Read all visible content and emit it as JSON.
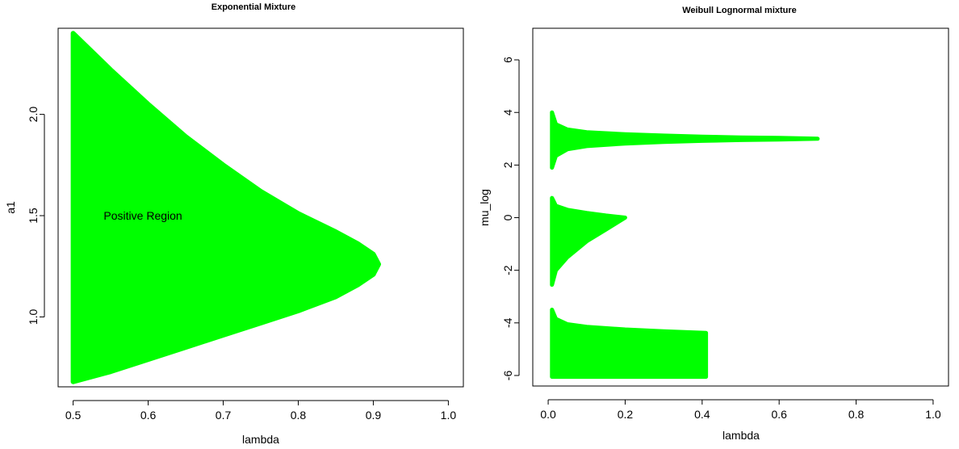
{
  "chart_data": [
    {
      "type": "scatter",
      "title": "Exponential Mixture",
      "xlabel": "lambda",
      "ylabel": "a1",
      "xlim": [
        0.48,
        1.02
      ],
      "ylim": [
        0.655,
        2.425
      ],
      "xticks": [
        0.5,
        0.6,
        0.7,
        0.8,
        0.9,
        1.0
      ],
      "xtick_labels": [
        "0.5",
        "0.6",
        "0.7",
        "0.8",
        "0.9",
        "1.0"
      ],
      "yticks": [
        1.0,
        1.5,
        2.0
      ],
      "ytick_labels": [
        "1.0",
        "1.5",
        "2.0"
      ],
      "color": "#00ff00",
      "annotation": {
        "text": "Positive Region",
        "x": 0.55,
        "y": 1.5
      },
      "region": {
        "upper_boundary": [
          [
            0.5,
            2.4
          ],
          [
            0.55,
            2.22
          ],
          [
            0.6,
            2.05
          ],
          [
            0.65,
            1.89
          ],
          [
            0.7,
            1.75
          ],
          [
            0.75,
            1.62
          ],
          [
            0.8,
            1.51
          ],
          [
            0.85,
            1.42
          ],
          [
            0.88,
            1.36
          ],
          [
            0.9,
            1.31
          ],
          [
            0.907,
            1.26
          ]
        ],
        "lower_boundary": [
          [
            0.5,
            0.68
          ],
          [
            0.55,
            0.73
          ],
          [
            0.6,
            0.79
          ],
          [
            0.65,
            0.85
          ],
          [
            0.7,
            0.91
          ],
          [
            0.75,
            0.97
          ],
          [
            0.8,
            1.03
          ],
          [
            0.85,
            1.1
          ],
          [
            0.88,
            1.16
          ],
          [
            0.9,
            1.21
          ],
          [
            0.907,
            1.26
          ]
        ]
      }
    },
    {
      "type": "scatter",
      "title": "Weibull Lognormal mixture",
      "xlabel": "lambda",
      "ylabel": "mu_log",
      "xlim": [
        -0.04,
        1.04
      ],
      "ylim": [
        -6.4,
        7.2
      ],
      "xticks": [
        0.0,
        0.2,
        0.4,
        0.6,
        0.8,
        1.0
      ],
      "xtick_labels": [
        "0.0",
        "0.2",
        "0.4",
        "0.6",
        "0.8",
        "1.0"
      ],
      "yticks": [
        -6,
        -4,
        -2,
        0,
        2,
        4,
        6
      ],
      "ytick_labels": [
        "-6",
        "-4",
        "-2",
        "0",
        "2",
        "4",
        "6"
      ],
      "color": "#00ff00",
      "clusters": [
        {
          "upper_boundary": [
            [
              0.01,
              4.0
            ],
            [
              0.02,
              3.55
            ],
            [
              0.05,
              3.35
            ],
            [
              0.1,
              3.25
            ],
            [
              0.2,
              3.17
            ],
            [
              0.3,
              3.12
            ],
            [
              0.4,
              3.08
            ],
            [
              0.5,
              3.05
            ],
            [
              0.6,
              3.03
            ],
            [
              0.7,
              3.0
            ]
          ],
          "lower_boundary": [
            [
              0.01,
              1.9
            ],
            [
              0.02,
              2.35
            ],
            [
              0.05,
              2.6
            ],
            [
              0.1,
              2.72
            ],
            [
              0.2,
              2.82
            ],
            [
              0.3,
              2.88
            ],
            [
              0.4,
              2.92
            ],
            [
              0.5,
              2.95
            ],
            [
              0.6,
              2.97
            ],
            [
              0.7,
              3.0
            ]
          ]
        },
        {
          "upper_boundary": [
            [
              0.01,
              0.75
            ],
            [
              0.02,
              0.45
            ],
            [
              0.05,
              0.3
            ],
            [
              0.1,
              0.18
            ],
            [
              0.15,
              0.08
            ],
            [
              0.2,
              0.0
            ]
          ],
          "lower_boundary": [
            [
              0.01,
              -2.55
            ],
            [
              0.02,
              -2.0
            ],
            [
              0.05,
              -1.5
            ],
            [
              0.1,
              -0.9
            ],
            [
              0.15,
              -0.45
            ],
            [
              0.2,
              0.0
            ]
          ]
        },
        {
          "upper_boundary": [
            [
              0.01,
              -3.5
            ],
            [
              0.02,
              -3.85
            ],
            [
              0.05,
              -4.05
            ],
            [
              0.1,
              -4.15
            ],
            [
              0.2,
              -4.25
            ],
            [
              0.3,
              -4.32
            ],
            [
              0.41,
              -4.38
            ]
          ],
          "lower_boundary": [
            [
              0.01,
              -6.05
            ],
            [
              0.41,
              -6.05
            ]
          ]
        }
      ]
    }
  ]
}
